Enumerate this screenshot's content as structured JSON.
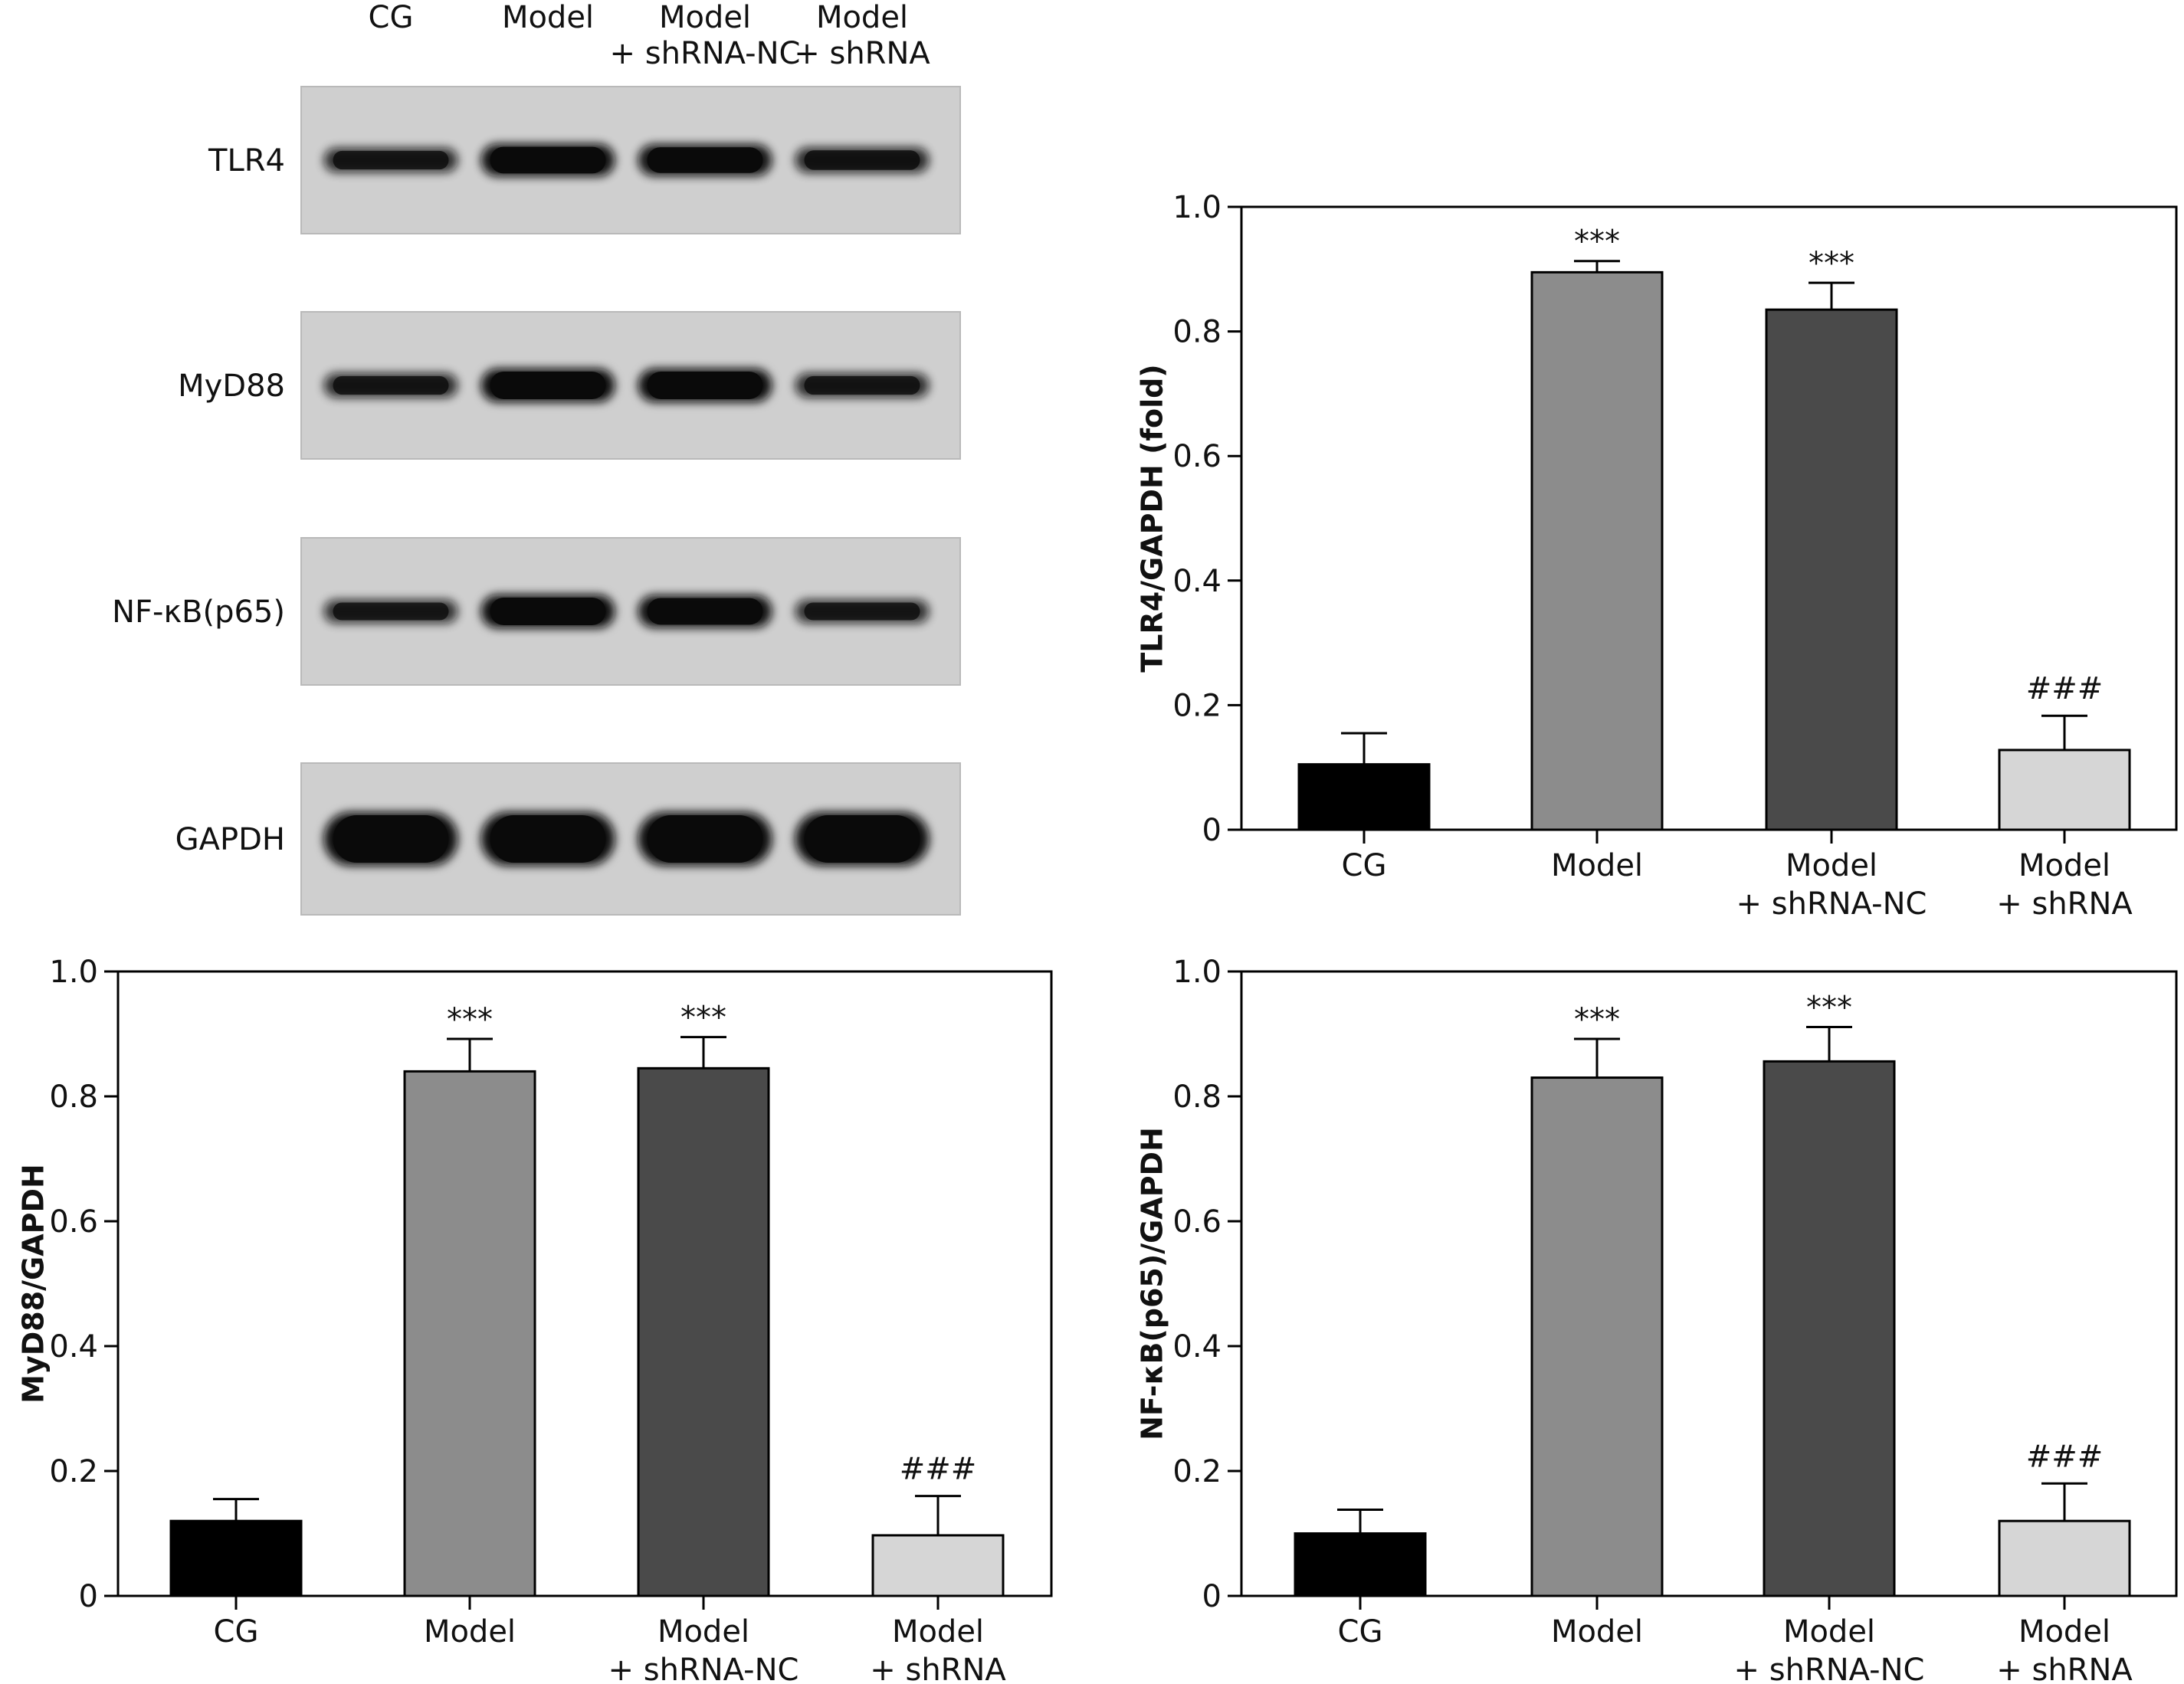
{
  "blot": {
    "lane_labels": [
      [
        "CG"
      ],
      [
        "Model"
      ],
      [
        "Model",
        "+ shRNA-NC"
      ],
      [
        "Model",
        "+ shRNA"
      ]
    ],
    "rows": [
      {
        "label": "TLR4",
        "intensity": [
          0.55,
          0.95,
          0.9,
          0.6
        ]
      },
      {
        "label": "MyD88",
        "intensity": [
          0.55,
          1.0,
          1.0,
          0.55
        ]
      },
      {
        "label": "NF-κB(p65)",
        "intensity": [
          0.5,
          1.0,
          0.95,
          0.5
        ]
      },
      {
        "label": "GAPDH",
        "intensity": [
          1.0,
          1.0,
          1.0,
          1.0
        ]
      }
    ]
  },
  "colors": {
    "CG": "#000000",
    "Model": "#8c8c8c",
    "Model + shRNA-NC": "#4a4a4a",
    "Model + shRNA": "#d6d6d6",
    "axis": "#000000",
    "blot_bg": "#cfcfcf",
    "band": "#0a0a0a"
  },
  "chart_data": [
    {
      "id": "tlr4",
      "type": "bar",
      "categories": [
        [
          "CG"
        ],
        [
          "Model"
        ],
        [
          "Model",
          "+ shRNA-NC"
        ],
        [
          "Model",
          "+ shRNA"
        ]
      ],
      "values": [
        0.105,
        0.895,
        0.835,
        0.128
      ],
      "errors": [
        0.05,
        0.018,
        0.043,
        0.055
      ],
      "significance": [
        "",
        "***",
        "***",
        "###"
      ],
      "ylabel": "TLR4/GAPDH (fold)",
      "ylim": [
        0,
        1.0
      ],
      "yticks": [
        0,
        0.2,
        0.4,
        0.6,
        0.8,
        1.0
      ],
      "ytick_labels": [
        "0",
        "0.2",
        "0.4",
        "0.6",
        "0.8",
        "1.0"
      ]
    },
    {
      "id": "myd88",
      "type": "bar",
      "categories": [
        [
          "CG"
        ],
        [
          "Model"
        ],
        [
          "Model",
          "+ shRNA-NC"
        ],
        [
          "Model",
          "+ shRNA"
        ]
      ],
      "values": [
        0.12,
        0.84,
        0.845,
        0.097
      ],
      "errors": [
        0.035,
        0.052,
        0.05,
        0.063
      ],
      "significance": [
        "",
        "***",
        "***",
        "###"
      ],
      "ylabel": "MyD88/GAPDH",
      "ylim": [
        0,
        1.0
      ],
      "yticks": [
        0,
        0.2,
        0.4,
        0.6,
        0.8,
        1.0
      ],
      "ytick_labels": [
        "0",
        "0.2",
        "0.4",
        "0.6",
        "0.8",
        "1.0"
      ]
    },
    {
      "id": "nfkb",
      "type": "bar",
      "categories": [
        [
          "CG"
        ],
        [
          "Model"
        ],
        [
          "Model",
          "+ shRNA-NC"
        ],
        [
          "Model",
          "+ shRNA"
        ]
      ],
      "values": [
        0.1,
        0.83,
        0.856,
        0.12
      ],
      "errors": [
        0.038,
        0.062,
        0.055,
        0.06
      ],
      "significance": [
        "",
        "***",
        "***",
        "###"
      ],
      "ylabel": "NF-κB(p65)/GAPDH",
      "ylim": [
        0,
        1.0
      ],
      "yticks": [
        0,
        0.2,
        0.4,
        0.6,
        0.8,
        1.0
      ],
      "ytick_labels": [
        "0",
        "0.2",
        "0.4",
        "0.6",
        "0.8",
        "1.0"
      ]
    }
  ]
}
